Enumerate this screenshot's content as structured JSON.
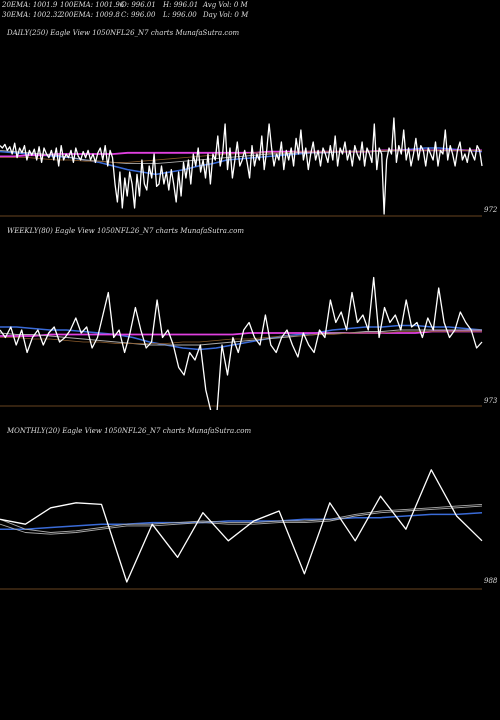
{
  "stats": {
    "ema20": "20EMA: 1001.9",
    "ema100": "100EMA: 1001.96",
    "open": "O: 996.01",
    "high": "H: 996.01",
    "avgvol": "Avg Vol: 0  M",
    "ema30": "30EMA: 1002.32",
    "ema200": "200EMA: 1009.8",
    "close": "C: 996.00",
    "low": "L: 996.00",
    "dayvol": "Day Vol: 0  M"
  },
  "colors": {
    "price": "#ffffff",
    "ema_blue": "#3a6bd8",
    "ema_pink": "#e040e0",
    "ema_gray": "#aaaaaa",
    "ema_brown": "#8a5a2a",
    "baseline": "#8a5a2a"
  },
  "chart_data": [
    {
      "type": "line",
      "title": "DAILY(250) Eagle   View  1050NFL26_N7 charts MunafaSutra.com",
      "axis_label": "972",
      "ylim": [
        0,
        1
      ],
      "series": [
        {
          "role": "price",
          "values": [
            0.62,
            0.6,
            0.63,
            0.58,
            0.61,
            0.55,
            0.64,
            0.52,
            0.6,
            0.56,
            0.62,
            0.5,
            0.58,
            0.54,
            0.59,
            0.5,
            0.61,
            0.48,
            0.6,
            0.55,
            0.52,
            0.58,
            0.5,
            0.6,
            0.45,
            0.62,
            0.5,
            0.55,
            0.52,
            0.58,
            0.48,
            0.6,
            0.53,
            0.5,
            0.57,
            0.52,
            0.58,
            0.5,
            0.55,
            0.48,
            0.56,
            0.6,
            0.5,
            0.62,
            0.45,
            0.58,
            0.52,
            0.3,
            0.15,
            0.4,
            0.1,
            0.35,
            0.2,
            0.4,
            0.3,
            0.1,
            0.38,
            0.2,
            0.5,
            0.3,
            0.25,
            0.45,
            0.35,
            0.55,
            0.28,
            0.3,
            0.45,
            0.3,
            0.4,
            0.25,
            0.42,
            0.3,
            0.15,
            0.4,
            0.2,
            0.48,
            0.35,
            0.5,
            0.3,
            0.55,
            0.45,
            0.6,
            0.4,
            0.5,
            0.35,
            0.55,
            0.3,
            0.55,
            0.5,
            0.7,
            0.45,
            0.55,
            0.8,
            0.42,
            0.6,
            0.35,
            0.5,
            0.65,
            0.45,
            0.5,
            0.58,
            0.48,
            0.35,
            0.62,
            0.45,
            0.55,
            0.5,
            0.7,
            0.42,
            0.58,
            0.8,
            0.6,
            0.45,
            0.55,
            0.5,
            0.65,
            0.42,
            0.58,
            0.5,
            0.6,
            0.45,
            0.68,
            0.55,
            0.75,
            0.5,
            0.6,
            0.42,
            0.55,
            0.65,
            0.5,
            0.58,
            0.45,
            0.6,
            0.55,
            0.48,
            0.62,
            0.5,
            0.7,
            0.45,
            0.6,
            0.55,
            0.65,
            0.5,
            0.58,
            0.45,
            0.62,
            0.55,
            0.5,
            0.65,
            0.45,
            0.6,
            0.55,
            0.48,
            0.8,
            0.42,
            0.6,
            0.55,
            0.05,
            0.5,
            0.6,
            0.55,
            0.85,
            0.48,
            0.62,
            0.55,
            0.75,
            0.5,
            0.6,
            0.45,
            0.55,
            0.68,
            0.5,
            0.62,
            0.58,
            0.45,
            0.6,
            0.55,
            0.5,
            0.65,
            0.45,
            0.58,
            0.55,
            0.75,
            0.5,
            0.62,
            0.55,
            0.45,
            0.58,
            0.65,
            0.5,
            0.55,
            0.48,
            0.6,
            0.55,
            0.5,
            0.62,
            0.58,
            0.45
          ]
        },
        {
          "role": "ema_blue",
          "values": [
            0.57,
            0.56,
            0.55,
            0.54,
            0.53,
            0.52,
            0.5,
            0.48,
            0.45,
            0.42,
            0.4,
            0.38,
            0.4,
            0.42,
            0.45,
            0.47,
            0.5,
            0.51,
            0.52,
            0.53,
            0.54,
            0.55,
            0.56,
            0.56,
            0.57,
            0.57,
            0.57,
            0.58,
            0.58,
            0.59,
            0.6,
            0.6,
            0.59,
            0.58,
            0.57
          ]
        },
        {
          "role": "ema_pink",
          "values": [
            0.53,
            0.53,
            0.54,
            0.54,
            0.55,
            0.55,
            0.55,
            0.55,
            0.55,
            0.56,
            0.56,
            0.56,
            0.56,
            0.56,
            0.56,
            0.56,
            0.56,
            0.56,
            0.56,
            0.57,
            0.57,
            0.57,
            0.57,
            0.57,
            0.57,
            0.57,
            0.57,
            0.58,
            0.58,
            0.58,
            0.58,
            0.58,
            0.58,
            0.58,
            0.58
          ]
        },
        {
          "role": "ema_gray",
          "values": [
            0.58,
            0.57,
            0.56,
            0.55,
            0.54,
            0.52,
            0.5,
            0.49,
            0.48,
            0.47,
            0.47,
            0.47,
            0.48,
            0.49,
            0.5,
            0.51,
            0.52,
            0.53,
            0.54,
            0.55,
            0.55,
            0.56,
            0.56,
            0.56,
            0.57,
            0.57,
            0.57,
            0.57,
            0.58,
            0.58,
            0.58,
            0.58,
            0.58,
            0.58,
            0.58
          ]
        },
        {
          "role": "ema_brown",
          "values": [
            0.52,
            0.52,
            0.52,
            0.51,
            0.5,
            0.5,
            0.49,
            0.49,
            0.48,
            0.48,
            0.49,
            0.5,
            0.51,
            0.52,
            0.53,
            0.54,
            0.55,
            0.55,
            0.56,
            0.56,
            0.56,
            0.57,
            0.57,
            0.57,
            0.57,
            0.57,
            0.57,
            0.58,
            0.58,
            0.58,
            0.58,
            0.58,
            0.58,
            0.58,
            0.58
          ]
        }
      ]
    },
    {
      "type": "line",
      "title": "WEEKLY(80) Eagle   View  1050NFL26_N7 charts MunafaSutra.com",
      "axis_label": "973",
      "ylim": [
        0,
        1
      ],
      "series": [
        {
          "role": "price",
          "values": [
            0.6,
            0.55,
            0.62,
            0.5,
            0.6,
            0.45,
            0.55,
            0.6,
            0.5,
            0.58,
            0.62,
            0.52,
            0.55,
            0.6,
            0.68,
            0.58,
            0.62,
            0.48,
            0.55,
            0.7,
            0.85,
            0.55,
            0.6,
            0.45,
            0.58,
            0.75,
            0.6,
            0.48,
            0.52,
            0.8,
            0.55,
            0.6,
            0.5,
            0.35,
            0.3,
            0.45,
            0.4,
            0.5,
            0.2,
            0.05,
            0.02,
            0.5,
            0.3,
            0.55,
            0.45,
            0.6,
            0.65,
            0.55,
            0.5,
            0.7,
            0.5,
            0.45,
            0.55,
            0.6,
            0.5,
            0.42,
            0.58,
            0.5,
            0.45,
            0.6,
            0.55,
            0.8,
            0.65,
            0.72,
            0.6,
            0.85,
            0.65,
            0.7,
            0.6,
            0.95,
            0.55,
            0.75,
            0.65,
            0.7,
            0.6,
            0.8,
            0.62,
            0.65,
            0.55,
            0.68,
            0.6,
            0.88,
            0.65,
            0.55,
            0.6,
            0.72,
            0.65,
            0.6,
            0.48,
            0.52
          ]
        },
        {
          "role": "ema_blue",
          "values": [
            0.62,
            0.62,
            0.61,
            0.6,
            0.6,
            0.59,
            0.58,
            0.57,
            0.55,
            0.52,
            0.5,
            0.48,
            0.47,
            0.48,
            0.5,
            0.52,
            0.54,
            0.56,
            0.57,
            0.58,
            0.6,
            0.61,
            0.62,
            0.62,
            0.63,
            0.63,
            0.62,
            0.62,
            0.61,
            0.6
          ]
        },
        {
          "role": "ema_pink",
          "values": [
            0.56,
            0.56,
            0.56,
            0.57,
            0.57,
            0.57,
            0.57,
            0.57,
            0.57,
            0.57,
            0.57,
            0.57,
            0.57,
            0.57,
            0.57,
            0.58,
            0.58,
            0.58,
            0.58,
            0.58,
            0.58,
            0.58,
            0.58,
            0.58,
            0.58,
            0.58,
            0.59,
            0.59,
            0.59,
            0.59
          ]
        },
        {
          "role": "ema_gray",
          "values": [
            0.58,
            0.57,
            0.57,
            0.56,
            0.55,
            0.54,
            0.53,
            0.52,
            0.51,
            0.5,
            0.5,
            0.5,
            0.5,
            0.51,
            0.52,
            0.53,
            0.54,
            0.55,
            0.56,
            0.57,
            0.58,
            0.58,
            0.59,
            0.59,
            0.6,
            0.6,
            0.6,
            0.6,
            0.6,
            0.6
          ]
        },
        {
          "role": "ema_brown",
          "values": [
            0.55,
            0.55,
            0.54,
            0.54,
            0.53,
            0.52,
            0.52,
            0.51,
            0.51,
            0.51,
            0.51,
            0.52,
            0.52,
            0.53,
            0.54,
            0.54,
            0.55,
            0.56,
            0.56,
            0.57,
            0.57,
            0.58,
            0.58,
            0.58,
            0.59,
            0.59,
            0.59,
            0.59,
            0.59,
            0.59
          ]
        }
      ]
    },
    {
      "type": "line",
      "title": "MONTHLY(20) Eagle   View  1050NFL26_N7 charts MunafaSutra.com",
      "axis_label": "988",
      "ylim": [
        0,
        1
      ],
      "series": [
        {
          "role": "price",
          "values": [
            0.58,
            0.55,
            0.65,
            0.68,
            0.67,
            0.2,
            0.55,
            0.35,
            0.62,
            0.45,
            0.57,
            0.63,
            0.25,
            0.68,
            0.45,
            0.72,
            0.52,
            0.88,
            0.6,
            0.45
          ]
        },
        {
          "role": "ema_blue",
          "values": [
            0.52,
            0.52,
            0.53,
            0.54,
            0.55,
            0.55,
            0.56,
            0.56,
            0.56,
            0.57,
            0.57,
            0.57,
            0.58,
            0.58,
            0.59,
            0.59,
            0.6,
            0.61,
            0.61,
            0.62
          ]
        },
        {
          "role": "ema_gray",
          "values": [
            0.55,
            0.5,
            0.49,
            0.5,
            0.52,
            0.54,
            0.54,
            0.55,
            0.56,
            0.55,
            0.55,
            0.56,
            0.56,
            0.57,
            0.6,
            0.62,
            0.63,
            0.64,
            0.65,
            0.66
          ]
        },
        {
          "role": "ema_gray",
          "values": [
            0.58,
            0.52,
            0.5,
            0.51,
            0.53,
            0.55,
            0.55,
            0.56,
            0.57,
            0.56,
            0.56,
            0.57,
            0.57,
            0.58,
            0.61,
            0.63,
            0.64,
            0.65,
            0.66,
            0.67
          ]
        }
      ]
    }
  ]
}
